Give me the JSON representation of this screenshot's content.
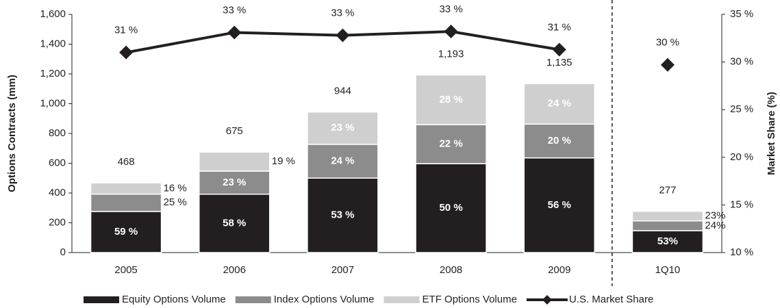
{
  "chart_data": {
    "type": "stacked_bar_line",
    "y_label": "Options Contracts (mm)",
    "y2_label": "Market Share (%)",
    "categories": [
      "2005",
      "2006",
      "2007",
      "2008",
      "2009",
      "1Q10"
    ],
    "series": [
      {
        "name": "Equity Options Volume",
        "color": "#231f20",
        "values": [
          276,
          392,
          500,
          597,
          636,
          147
        ],
        "share_labels": [
          "59 %",
          "58 %",
          "53 %",
          "50 %",
          "56 %",
          "53%"
        ]
      },
      {
        "name": "Index Options Volume",
        "color": "#8c8c8c",
        "values": [
          117,
          155,
          227,
          262,
          227,
          66
        ],
        "share_labels": [
          "25 %",
          "23 %",
          "24 %",
          "22 %",
          "20 %",
          "24%"
        ]
      },
      {
        "name": "ETF Options Volume",
        "color": "#cfcfcf",
        "values": [
          75,
          128,
          217,
          334,
          272,
          64
        ],
        "share_labels": [
          "16 %",
          "19 %",
          "23 %",
          "28 %",
          "24 %",
          "23%"
        ]
      },
      {
        "name": "U.S. Market Share",
        "color": "#231f20",
        "axis": "y2",
        "type": "line",
        "values": [
          31.0,
          33.1,
          32.8,
          33.2,
          31.3,
          29.7
        ],
        "value_labels": [
          "31 %",
          "33 %",
          "33 %",
          "33 %",
          "31 %",
          "30 %"
        ]
      }
    ],
    "totals": [
      468,
      675,
      944,
      1193,
      1135,
      277
    ],
    "total_labels": [
      "468",
      "675",
      "944",
      "1,193",
      "1,135",
      "277"
    ],
    "divider_before": 5,
    "ylim": [
      0,
      1600
    ],
    "yticks": [
      0,
      200,
      400,
      600,
      800,
      {
        "value": 1000,
        "label": "1,000"
      },
      {
        "value": 1200,
        "label": "1,200"
      },
      {
        "value": 1400,
        "label": "1,400"
      },
      {
        "value": 1600,
        "label": "1,600"
      }
    ],
    "y2lim": [
      10,
      35
    ],
    "y2ticks": [
      {
        "value": 10,
        "label": "10 %"
      },
      {
        "value": 15,
        "label": "15 %"
      },
      {
        "value": 20,
        "label": "20 %"
      },
      {
        "value": 25,
        "label": "25 %"
      },
      {
        "value": 30,
        "label": "30 %"
      },
      {
        "value": 35,
        "label": "35 %"
      }
    ],
    "grid": false,
    "legend": "bottom"
  }
}
